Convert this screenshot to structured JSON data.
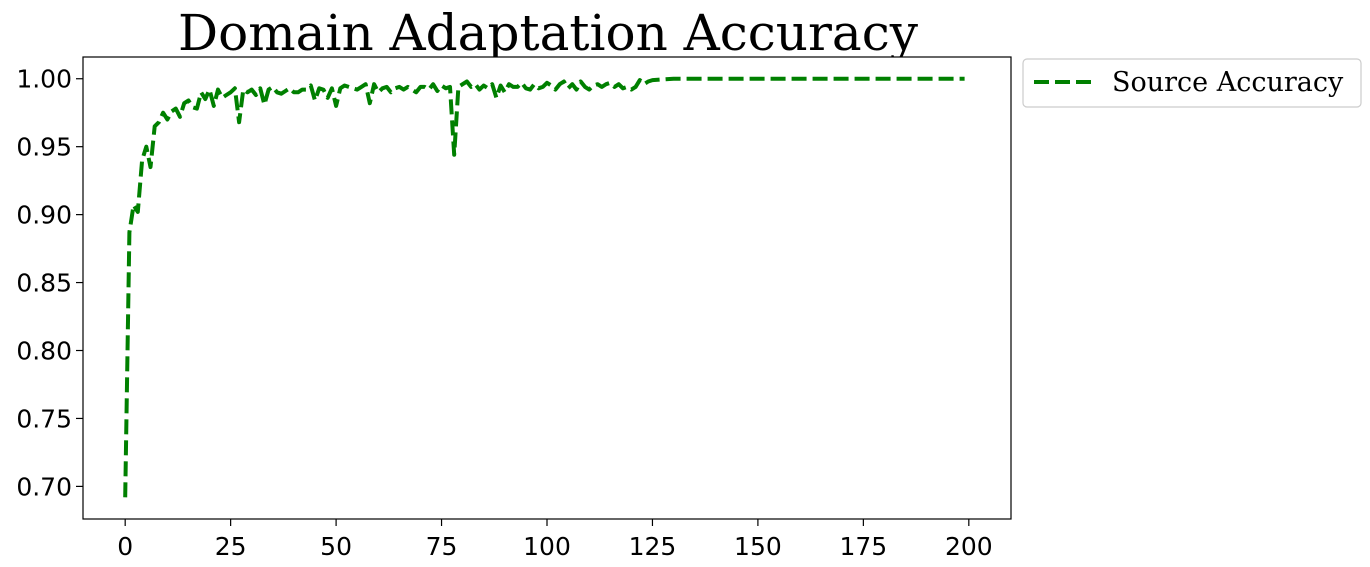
{
  "chart_data": {
    "type": "line",
    "title": "Domain Adaptation Accuracy",
    "xlabel": "",
    "ylabel": "",
    "xlim": [
      -10,
      210
    ],
    "ylim": [
      0.676,
      1.016
    ],
    "xticks": [
      0,
      25,
      50,
      75,
      100,
      125,
      150,
      175,
      200
    ],
    "xtick_labels": [
      "0",
      "25",
      "50",
      "75",
      "100",
      "125",
      "150",
      "175",
      "200"
    ],
    "yticks": [
      0.7,
      0.75,
      0.8,
      0.85,
      0.9,
      0.95,
      1.0
    ],
    "ytick_labels": [
      "0.70",
      "0.75",
      "0.80",
      "0.85",
      "0.90",
      "0.95",
      "1.00"
    ],
    "grid": false,
    "legend": {
      "placement": "outside-top-right"
    },
    "series": [
      {
        "name": "Source Accuracy",
        "color": "#008000",
        "line_style": "dashed",
        "x": [
          0,
          1,
          2,
          3,
          4,
          5,
          6,
          7,
          8,
          9,
          10,
          11,
          12,
          13,
          14,
          15,
          16,
          17,
          18,
          19,
          20,
          21,
          22,
          23,
          24,
          25,
          26,
          27,
          28,
          29,
          30,
          31,
          32,
          33,
          34,
          35,
          36,
          37,
          38,
          39,
          40,
          41,
          42,
          43,
          44,
          45,
          46,
          47,
          48,
          49,
          50,
          51,
          52,
          53,
          54,
          55,
          56,
          57,
          58,
          59,
          60,
          61,
          62,
          63,
          64,
          65,
          66,
          67,
          68,
          69,
          70,
          71,
          72,
          73,
          74,
          75,
          76,
          77,
          78,
          79,
          80,
          81,
          82,
          83,
          84,
          85,
          86,
          87,
          88,
          89,
          90,
          91,
          92,
          93,
          94,
          95,
          96,
          97,
          98,
          99,
          100,
          101,
          102,
          103,
          104,
          105,
          106,
          107,
          108,
          109,
          110,
          111,
          112,
          113,
          114,
          115,
          116,
          117,
          118,
          119,
          120,
          121,
          122,
          123,
          124,
          125,
          130,
          140,
          150,
          160,
          170,
          180,
          190,
          199
        ],
        "y": [
          0.692,
          0.887,
          0.907,
          0.902,
          0.94,
          0.95,
          0.935,
          0.965,
          0.968,
          0.975,
          0.97,
          0.976,
          0.978,
          0.972,
          0.982,
          0.984,
          0.979,
          0.978,
          0.99,
          0.985,
          0.992,
          0.98,
          0.992,
          0.986,
          0.988,
          0.99,
          0.993,
          0.968,
          0.992,
          0.99,
          0.992,
          0.988,
          0.993,
          0.981,
          0.992,
          0.994,
          0.99,
          0.989,
          0.991,
          0.993,
          0.99,
          0.99,
          0.992,
          0.992,
          0.995,
          0.984,
          0.993,
          0.992,
          0.986,
          0.993,
          0.98,
          0.993,
          0.995,
          0.994,
          0.993,
          0.992,
          0.994,
          0.996,
          0.982,
          0.996,
          0.99,
          0.993,
          0.994,
          0.99,
          0.993,
          0.994,
          0.992,
          0.994,
          0.992,
          0.99,
          0.994,
          0.994,
          0.992,
          0.996,
          0.991,
          0.995,
          0.993,
          0.994,
          0.944,
          0.994,
          0.996,
          0.998,
          0.994,
          0.996,
          0.992,
          0.995,
          0.993,
          0.996,
          0.986,
          0.995,
          0.99,
          0.996,
          0.994,
          0.994,
          0.997,
          0.993,
          0.992,
          0.996,
          0.993,
          0.994,
          0.997,
          0.995,
          0.992,
          0.996,
          0.998,
          0.993,
          0.996,
          0.992,
          0.998,
          0.994,
          0.992,
          0.995,
          0.996,
          0.994,
          0.996,
          0.997,
          0.994,
          0.996,
          0.993,
          0.994,
          0.992,
          0.994,
          0.999,
          0.996,
          0.998,
          0.999,
          1.0,
          1.0,
          1.0,
          1.0,
          1.0,
          1.0,
          1.0,
          1.0
        ]
      }
    ]
  }
}
